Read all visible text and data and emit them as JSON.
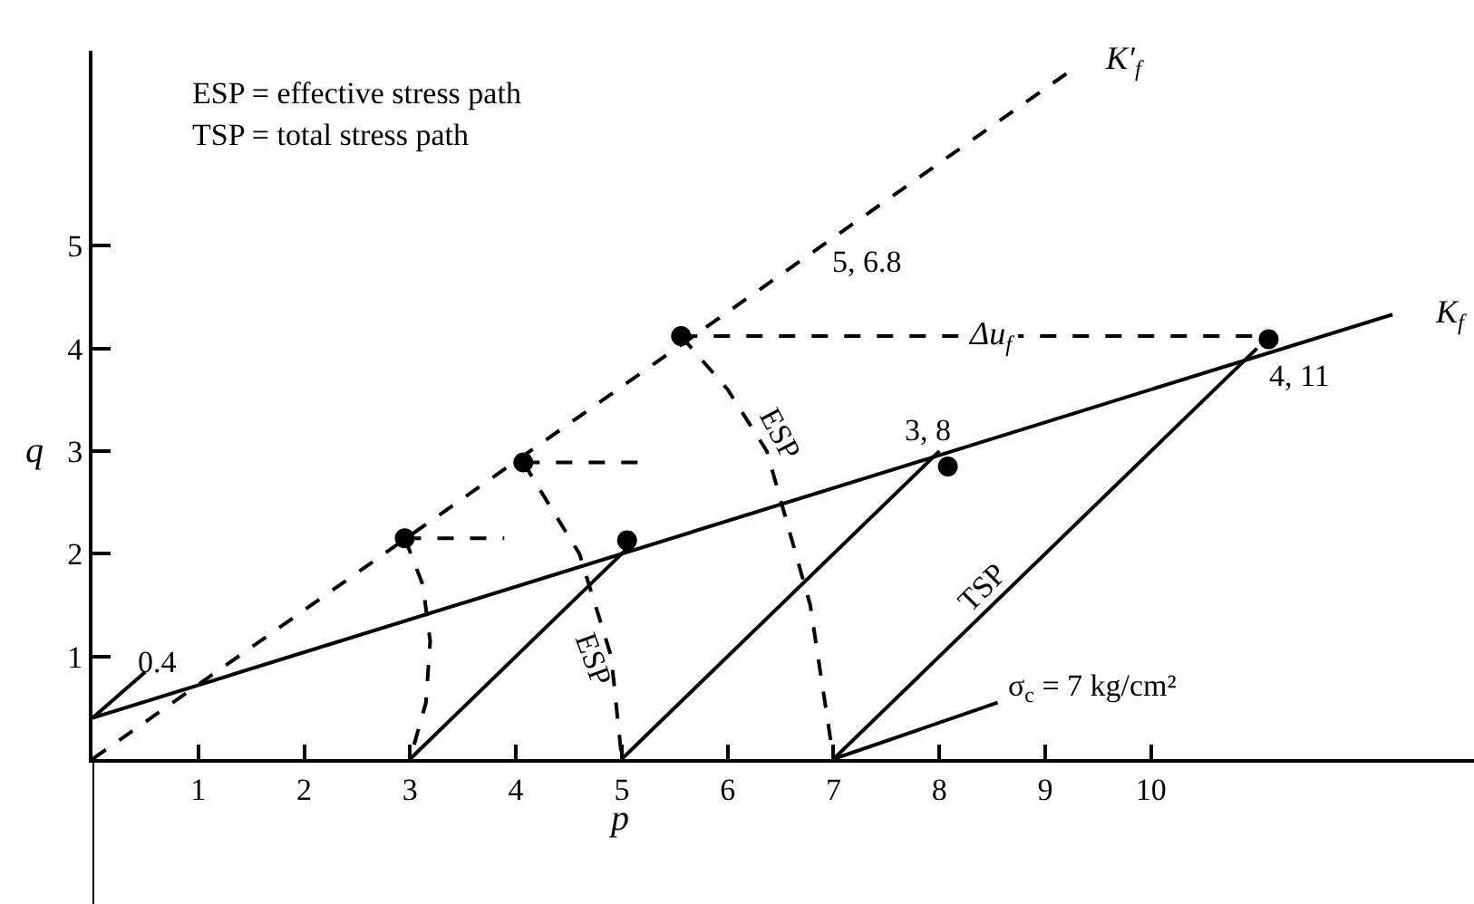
{
  "chart_data": {
    "type": "line",
    "xlabel": "p",
    "ylabel": "q",
    "xlim": [
      0,
      13.05
    ],
    "ylim": [
      0,
      6.9
    ],
    "xticks": [
      1,
      2,
      3,
      4,
      5,
      6,
      7,
      8,
      9,
      10
    ],
    "yticks": [
      1,
      2,
      3,
      4,
      5
    ],
    "series": [
      {
        "color": "#000000",
        "line_style": "solid",
        "x": [
          0,
          12.28
        ],
        "values": [
          0.4,
          4.33
        ]
      },
      {
        "color": "#000000",
        "line_style": "dashed",
        "x": [
          0,
          9.26
        ],
        "values": [
          0,
          6.72
        ]
      },
      {
        "color": "#000000",
        "line_style": "solid",
        "x": [
          3,
          5.05
        ],
        "values": [
          0,
          2.05
        ]
      },
      {
        "color": "#000000",
        "line_style": "solid",
        "x": [
          5,
          8.0
        ],
        "values": [
          0,
          3.0
        ]
      },
      {
        "color": "#000000",
        "line_style": "solid",
        "x": [
          7,
          11.0
        ],
        "values": [
          0,
          4.0
        ]
      },
      {
        "color": "#000000",
        "line_style": "dashed",
        "x": [
          2.95,
          3.12,
          3.19,
          3.15,
          3.0
        ],
        "values": [
          2.15,
          1.7,
          1.15,
          0.55,
          0
        ]
      },
      {
        "color": "#000000",
        "line_style": "dashed",
        "x": [
          4.07,
          4.3,
          4.6,
          4.9,
          5.0
        ],
        "values": [
          2.89,
          2.5,
          2.0,
          1.0,
          0
        ]
      },
      {
        "color": "#000000",
        "line_style": "dashed",
        "x": [
          5.56,
          6.0,
          6.37,
          6.78,
          7.0
        ],
        "values": [
          4.12,
          3.6,
          3.0,
          1.5,
          0
        ]
      },
      {
        "color": "#000000",
        "line_style": "dashed",
        "x": [
          2.95,
          3.89
        ],
        "values": [
          2.15,
          2.15
        ]
      },
      {
        "color": "#000000",
        "line_style": "dashed",
        "x": [
          4.07,
          5.17
        ],
        "values": [
          2.89,
          2.89
        ]
      },
      {
        "color": "#000000",
        "line_style": "dashed",
        "x": [
          5.56,
          11.11
        ],
        "values": [
          4.12,
          4.12
        ]
      },
      {
        "color": "#000000",
        "type": "scatter",
        "marker": "circle",
        "x": [
          2.95,
          4.07,
          5.56,
          5.05,
          8.08,
          11.11
        ],
        "values": [
          2.15,
          2.89,
          4.12,
          2.13,
          2.85,
          4.09
        ]
      },
      {
        "color": "#000000",
        "line_style": "solid",
        "x": [
          0,
          0.5
        ],
        "values": [
          0.4,
          0.85
        ]
      },
      {
        "color": "#000000",
        "line_style": "solid",
        "x": [
          7,
          8.55
        ],
        "values": [
          0,
          0.55
        ]
      }
    ],
    "annotations": [
      "ESP = effective stress path",
      "TSP = total stress path",
      "K′$_{f}$",
      "K$_{f}$",
      "5, 6.8",
      "3, 8",
      "4, 11",
      "0.4",
      "σ$_{c}$ = 7 kg/cm²",
      "Δu$_{f}$",
      "ESP",
      "ESP",
      "TSP"
    ]
  }
}
